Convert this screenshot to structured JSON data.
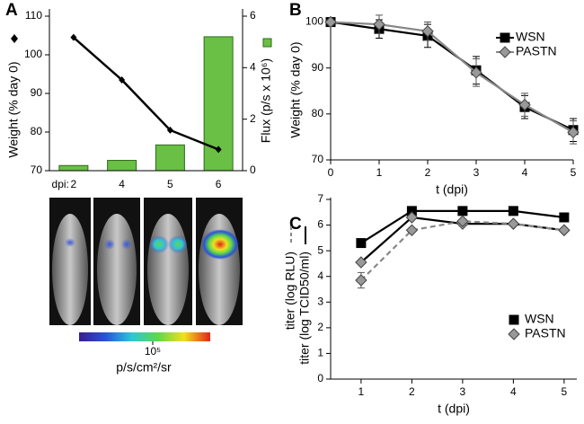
{
  "chart_data": [
    {
      "type": "combo",
      "panel": "A",
      "categories": [
        "2",
        "4",
        "5",
        "6"
      ],
      "x_prefix": "dpi:",
      "ylabel": "Weight (% day 0)",
      "ylim": [
        70,
        110
      ],
      "yticks": [
        70,
        80,
        90,
        100,
        110
      ],
      "y2label": "Flux (p/s x 10⁶)",
      "y2lim": [
        0,
        6
      ],
      "y2ticks": [
        0,
        2,
        4,
        6
      ],
      "series": [
        {
          "kind": "bar",
          "axis": "y2",
          "color": "#6abf45",
          "values": [
            0.2,
            0.4,
            1.0,
            5.2
          ]
        },
        {
          "kind": "line",
          "marker": "diamond",
          "color": "#000000",
          "values": [
            104.5,
            93.5,
            80.5,
            75.5
          ]
        }
      ],
      "colorbar_tick": "10⁵",
      "colorbar_label": "p/s/cm²/sr"
    },
    {
      "type": "line",
      "panel": "B",
      "x": [
        0,
        1,
        2,
        3,
        4,
        5
      ],
      "xlim": [
        0,
        5
      ],
      "xticks": [
        0,
        1,
        2,
        3,
        4,
        5
      ],
      "xlabel": "t (dpi)",
      "ylabel": "Weight  (% day 0)",
      "ylim": [
        70,
        100.5
      ],
      "yticks": [
        70,
        80,
        90,
        100
      ],
      "series": [
        {
          "name": "WSN",
          "marker": "square",
          "color": "#000000",
          "dash": false,
          "values": [
            100,
            98.5,
            97,
            89.5,
            81.5,
            76.5
          ],
          "errors": [
            0.5,
            2,
            2.5,
            3,
            2.5,
            2.5
          ]
        },
        {
          "name": "PASTN",
          "marker": "diamond",
          "color": "#888888",
          "dash": false,
          "values": [
            100,
            99.5,
            98,
            89,
            82,
            76
          ],
          "errors": [
            0.5,
            2,
            2,
            3,
            2.5,
            2.5
          ]
        }
      ]
    },
    {
      "type": "line",
      "panel": "C",
      "x": [
        1,
        2,
        3,
        4,
        5
      ],
      "xlim": [
        0.4,
        5.25
      ],
      "xticks": [
        1,
        2,
        3,
        4,
        5
      ],
      "xlabel": "t (dpi)",
      "ylabels": [
        "titer (log RLU)",
        "titer (log TCID50/ml)"
      ],
      "ylim": [
        0,
        7
      ],
      "yticks": [
        0,
        1,
        2,
        3,
        4,
        5,
        6,
        7
      ],
      "series": [
        {
          "name": "WSN",
          "marker": "square",
          "color": "#000000",
          "dash": false,
          "values": [
            5.3,
            6.55,
            6.55,
            6.55,
            6.3
          ]
        },
        {
          "name": "PASTN",
          "marker": "diamond",
          "color": "#000000",
          "dash": false,
          "values": [
            4.55,
            6.3,
            6.05,
            6.05,
            5.8
          ]
        },
        {
          "marker": "diamond",
          "color": "#888888",
          "dash": true,
          "values": [
            3.85,
            5.8,
            6.15,
            6.05,
            5.8
          ],
          "errors": [
            0.3,
            null,
            null,
            null,
            null
          ]
        }
      ]
    }
  ]
}
